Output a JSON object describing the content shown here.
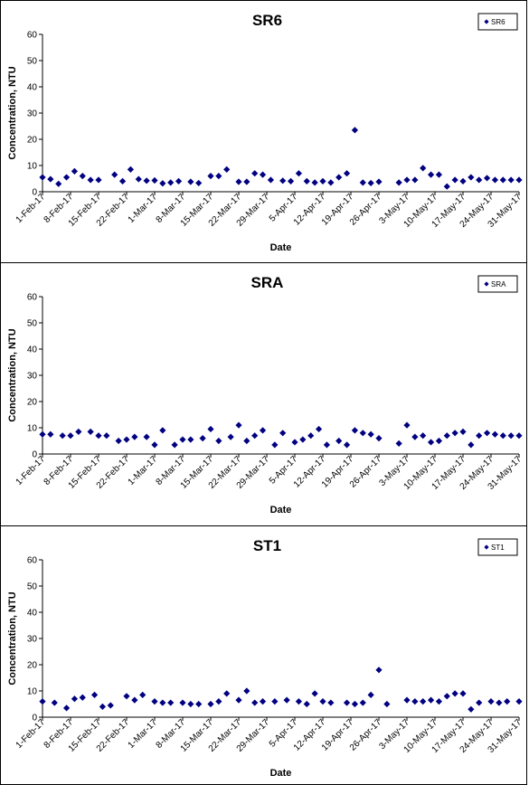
{
  "chart_data": [
    {
      "type": "scatter",
      "title": "SR6",
      "xlabel": "Date",
      "ylabel": "Concentration, NTU",
      "ylim": [
        0,
        60
      ],
      "yticks": [
        0,
        10,
        20,
        30,
        40,
        50,
        60
      ],
      "xlim": [
        "1-Feb-17",
        "31-May-17"
      ],
      "xticks": [
        "1-Feb-17",
        "8-Feb-17",
        "15-Feb-17",
        "22-Feb-17",
        "1-Mar-17",
        "8-Mar-17",
        "15-Mar-17",
        "22-Mar-17",
        "29-Mar-17",
        "5-Apr-17",
        "12-Apr-17",
        "19-Apr-17",
        "26-Apr-17",
        "3-May-17",
        "10-May-17",
        "17-May-17",
        "24-May-17",
        "31-May-17"
      ],
      "grid": false,
      "legend_position": "top-right",
      "marker_color": "#000080",
      "series": [
        {
          "name": "SR6",
          "x": [
            "1-Feb-17",
            "3-Feb-17",
            "5-Feb-17",
            "7-Feb-17",
            "9-Feb-17",
            "11-Feb-17",
            "13-Feb-17",
            "15-Feb-17",
            "19-Feb-17",
            "21-Feb-17",
            "23-Feb-17",
            "25-Feb-17",
            "27-Feb-17",
            "1-Mar-17",
            "3-Mar-17",
            "5-Mar-17",
            "7-Mar-17",
            "10-Mar-17",
            "12-Mar-17",
            "15-Mar-17",
            "17-Mar-17",
            "19-Mar-17",
            "22-Mar-17",
            "24-Mar-17",
            "26-Mar-17",
            "28-Mar-17",
            "30-Mar-17",
            "2-Apr-17",
            "4-Apr-17",
            "6-Apr-17",
            "8-Apr-17",
            "10-Apr-17",
            "12-Apr-17",
            "14-Apr-17",
            "16-Apr-17",
            "18-Apr-17",
            "20-Apr-17",
            "22-Apr-17",
            "24-Apr-17",
            "26-Apr-17",
            "1-May-17",
            "3-May-17",
            "5-May-17",
            "7-May-17",
            "9-May-17",
            "11-May-17",
            "13-May-17",
            "15-May-17",
            "17-May-17",
            "19-May-17",
            "21-May-17",
            "23-May-17",
            "25-May-17",
            "27-May-17",
            "29-May-17",
            "31-May-17"
          ],
          "y": [
            5.5,
            4.8,
            3.0,
            5.5,
            7.8,
            6.0,
            4.5,
            4.5,
            6.5,
            4.0,
            8.5,
            4.8,
            4.2,
            4.3,
            3.2,
            3.5,
            4.0,
            3.8,
            3.3,
            6.0,
            6.0,
            8.5,
            3.8,
            3.8,
            7.0,
            6.5,
            4.5,
            4.2,
            4.0,
            7.0,
            4.0,
            3.5,
            4.0,
            3.5,
            5.5,
            7.0,
            23.5,
            3.5,
            3.3,
            3.8,
            3.5,
            4.5,
            4.5,
            9.0,
            6.5,
            6.5,
            2.0,
            4.5,
            4.0,
            5.5,
            4.5,
            5.2,
            4.5,
            4.5,
            4.5,
            4.5
          ]
        }
      ]
    },
    {
      "type": "scatter",
      "title": "SRA",
      "xlabel": "Date",
      "ylabel": "Concentration, NTU",
      "ylim": [
        0,
        60
      ],
      "yticks": [
        0,
        10,
        20,
        30,
        40,
        50,
        60
      ],
      "xlim": [
        "1-Feb-17",
        "31-May-17"
      ],
      "xticks": [
        "1-Feb-17",
        "8-Feb-17",
        "15-Feb-17",
        "22-Feb-17",
        "1-Mar-17",
        "8-Mar-17",
        "15-Mar-17",
        "22-Mar-17",
        "29-Mar-17",
        "5-Apr-17",
        "12-Apr-17",
        "19-Apr-17",
        "26-Apr-17",
        "3-May-17",
        "10-May-17",
        "17-May-17",
        "24-May-17",
        "31-May-17"
      ],
      "grid": false,
      "legend_position": "top-right",
      "marker_color": "#000080",
      "series": [
        {
          "name": "SRA",
          "x": [
            "1-Feb-17",
            "3-Feb-17",
            "6-Feb-17",
            "8-Feb-17",
            "10-Feb-17",
            "13-Feb-17",
            "15-Feb-17",
            "17-Feb-17",
            "20-Feb-17",
            "22-Feb-17",
            "24-Feb-17",
            "27-Feb-17",
            "1-Mar-17",
            "3-Mar-17",
            "6-Mar-17",
            "8-Mar-17",
            "10-Mar-17",
            "13-Mar-17",
            "15-Mar-17",
            "17-Mar-17",
            "20-Mar-17",
            "22-Mar-17",
            "24-Mar-17",
            "26-Mar-17",
            "28-Mar-17",
            "31-Mar-17",
            "2-Apr-17",
            "5-Apr-17",
            "7-Apr-17",
            "9-Apr-17",
            "11-Apr-17",
            "13-Apr-17",
            "16-Apr-17",
            "18-Apr-17",
            "20-Apr-17",
            "22-Apr-17",
            "24-Apr-17",
            "26-Apr-17",
            "1-May-17",
            "3-May-17",
            "5-May-17",
            "7-May-17",
            "9-May-17",
            "11-May-17",
            "13-May-17",
            "15-May-17",
            "17-May-17",
            "19-May-17",
            "21-May-17",
            "23-May-17",
            "25-May-17",
            "27-May-17",
            "29-May-17",
            "31-May-17"
          ],
          "y": [
            7.5,
            7.5,
            7.0,
            7.0,
            8.5,
            8.5,
            7.0,
            7.0,
            5.0,
            5.5,
            6.5,
            6.5,
            3.5,
            9.0,
            3.5,
            5.5,
            5.5,
            6.0,
            9.5,
            5.0,
            6.5,
            11.0,
            5.0,
            7.0,
            9.0,
            3.5,
            8.0,
            4.5,
            5.5,
            7.0,
            9.5,
            3.5,
            5.0,
            3.5,
            9.0,
            8.0,
            7.5,
            6.0,
            4.0,
            11.0,
            6.5,
            7.0,
            4.5,
            5.0,
            7.0,
            8.0,
            8.5,
            3.5,
            7.0,
            8.0,
            7.5,
            7.0,
            7.0,
            7.0
          ]
        }
      ]
    },
    {
      "type": "scatter",
      "title": "ST1",
      "xlabel": "Date",
      "ylabel": "Concentration, NTU",
      "ylim": [
        0,
        60
      ],
      "yticks": [
        0,
        10,
        20,
        30,
        40,
        50,
        60
      ],
      "xlim": [
        "1-Feb-17",
        "31-May-17"
      ],
      "xticks": [
        "1-Feb-17",
        "8-Feb-17",
        "15-Feb-17",
        "22-Feb-17",
        "1-Mar-17",
        "8-Mar-17",
        "15-Mar-17",
        "22-Mar-17",
        "29-Mar-17",
        "5-Apr-17",
        "12-Apr-17",
        "19-Apr-17",
        "26-Apr-17",
        "3-May-17",
        "10-May-17",
        "17-May-17",
        "24-May-17",
        "31-May-17"
      ],
      "grid": false,
      "legend_position": "top-right",
      "marker_color": "#000080",
      "series": [
        {
          "name": "ST1",
          "x": [
            "1-Feb-17",
            "4-Feb-17",
            "7-Feb-17",
            "9-Feb-17",
            "11-Feb-17",
            "14-Feb-17",
            "16-Feb-17",
            "18-Feb-17",
            "22-Feb-17",
            "24-Feb-17",
            "26-Feb-17",
            "1-Mar-17",
            "3-Mar-17",
            "5-Mar-17",
            "8-Mar-17",
            "10-Mar-17",
            "12-Mar-17",
            "15-Mar-17",
            "17-Mar-17",
            "19-Mar-17",
            "22-Mar-17",
            "24-Mar-17",
            "26-Mar-17",
            "28-Mar-17",
            "31-Mar-17",
            "3-Apr-17",
            "6-Apr-17",
            "8-Apr-17",
            "10-Apr-17",
            "12-Apr-17",
            "14-Apr-17",
            "18-Apr-17",
            "20-Apr-17",
            "22-Apr-17",
            "24-Apr-17",
            "26-Apr-17",
            "28-Apr-17",
            "3-May-17",
            "5-May-17",
            "7-May-17",
            "9-May-17",
            "11-May-17",
            "13-May-17",
            "15-May-17",
            "17-May-17",
            "19-May-17",
            "21-May-17",
            "24-May-17",
            "26-May-17",
            "28-May-17",
            "31-May-17"
          ],
          "y": [
            6.0,
            5.5,
            3.5,
            7.0,
            7.5,
            8.5,
            4.0,
            4.5,
            8.0,
            6.5,
            8.5,
            6.0,
            5.5,
            5.5,
            5.5,
            5.0,
            5.0,
            5.0,
            6.0,
            9.0,
            6.5,
            10.0,
            5.5,
            6.0,
            6.0,
            6.5,
            6.0,
            5.0,
            9.0,
            6.0,
            5.5,
            5.5,
            5.0,
            5.5,
            8.5,
            18.0,
            5.0,
            6.5,
            6.0,
            6.0,
            6.5,
            6.0,
            8.0,
            9.0,
            9.0,
            3.0,
            5.5,
            6.0,
            5.5,
            6.0,
            6.0
          ]
        }
      ]
    }
  ]
}
